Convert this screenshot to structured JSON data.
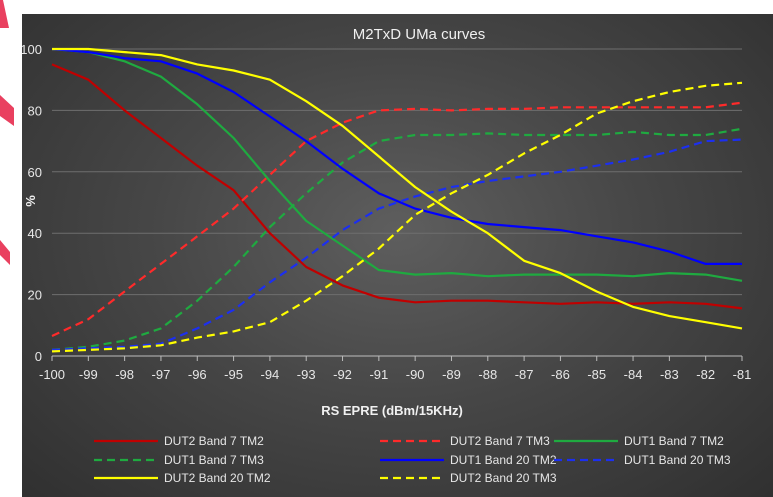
{
  "chart_data": {
    "type": "line",
    "title": "M2TxD UMa curves",
    "xlabel": "RS EPRE (dBm/15KHz)",
    "ylabel": "%",
    "x": [
      -100,
      -99,
      -98,
      -97,
      -96,
      -95,
      -94,
      -93,
      -92,
      -91,
      -90,
      -89,
      -88,
      -87,
      -86,
      -85,
      -84,
      -83,
      -82,
      -81
    ],
    "xlim": [
      -100,
      -81
    ],
    "ylim": [
      0,
      100
    ],
    "yticks": [
      0,
      20,
      40,
      60,
      80,
      100
    ],
    "xticks": [
      -100,
      -99,
      -98,
      -97,
      -96,
      -95,
      -94,
      -93,
      -92,
      -91,
      -90,
      -89,
      -88,
      -87,
      -86,
      -85,
      -84,
      -83,
      -82,
      -81
    ],
    "grid": true,
    "legend_position": "bottom",
    "series": [
      {
        "name": "DUT2 Band 7 TM2",
        "color": "#c00000",
        "dash": "solid",
        "values": [
          95,
          90,
          80,
          71,
          62,
          54,
          40,
          29,
          23,
          19,
          17.5,
          18,
          18,
          17.5,
          17,
          17.5,
          17,
          17.5,
          17,
          15.5
        ]
      },
      {
        "name": "DUT2 Band 7 TM3",
        "color": "#ff2a2a",
        "dash": "dashed",
        "values": [
          6.5,
          12,
          21,
          30,
          39,
          48,
          59,
          70,
          76,
          80,
          80.5,
          80,
          80.5,
          80.5,
          81,
          81,
          81,
          81,
          81,
          82.5
        ]
      },
      {
        "name": "DUT1 Band 7 TM2",
        "color": "#1faa40",
        "dash": "solid",
        "values": [
          100,
          99,
          96,
          91,
          82,
          71,
          57,
          44,
          36,
          28,
          26.5,
          27,
          26,
          26.5,
          26.5,
          26.5,
          26,
          27,
          26.5,
          24.5
        ]
      },
      {
        "name": "DUT1 Band 7 TM3",
        "color": "#1faa40",
        "dash": "dashed",
        "values": [
          2,
          3,
          5,
          9,
          18,
          29,
          42,
          53,
          63,
          70,
          72,
          72,
          72.5,
          72,
          72,
          72,
          73,
          72,
          72,
          74
        ]
      },
      {
        "name": "DUT1 Band 20 TM2",
        "color": "#0000ff",
        "dash": "solid",
        "values": [
          100,
          99,
          97,
          96,
          92,
          86,
          78,
          70,
          61,
          53,
          48,
          45,
          43,
          42,
          41,
          39,
          37,
          34,
          30,
          30
        ]
      },
      {
        "name": "DUT1 Band 20 TM3",
        "color": "#1c2ff0",
        "dash": "dashed",
        "values": [
          2,
          2.5,
          3,
          4,
          9,
          15,
          24,
          32,
          41,
          48,
          52,
          55,
          57,
          58.5,
          60,
          62,
          64,
          66.5,
          70,
          70.5
        ]
      },
      {
        "name": "DUT2 Band 20 TM2",
        "color": "#ffff00",
        "dash": "solid",
        "values": [
          100,
          100,
          99,
          98,
          95,
          93,
          90,
          83,
          75,
          65,
          55,
          47,
          40,
          31,
          27,
          21,
          16,
          13,
          11,
          9
        ]
      },
      {
        "name": "DUT2 Band 20 TM3",
        "color": "#ffff00",
        "dash": "dashed",
        "values": [
          1.5,
          2,
          2.5,
          3.5,
          6,
          8,
          11,
          18,
          26,
          35,
          46,
          53,
          59,
          66,
          72,
          79,
          83,
          86,
          88,
          89
        ]
      }
    ]
  }
}
